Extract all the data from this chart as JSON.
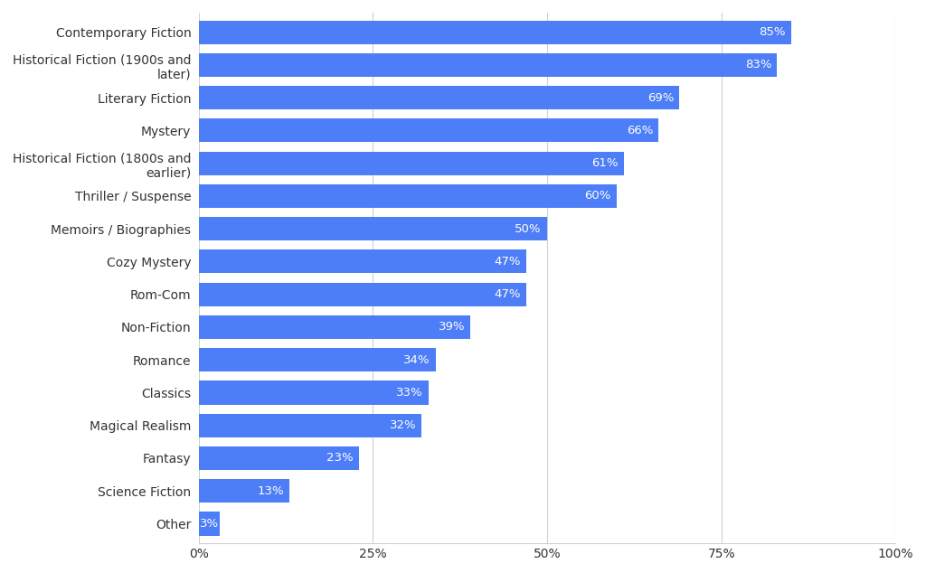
{
  "categories": [
    "Contemporary Fiction",
    "Historical Fiction (1900s and\nlater)",
    "Literary Fiction",
    "Mystery",
    "Historical Fiction (1800s and\nearlier)",
    "Thriller / Suspense",
    "Memoirs / Biographies",
    "Cozy Mystery",
    "Rom-Com",
    "Non-Fiction",
    "Romance",
    "Classics",
    "Magical Realism",
    "Fantasy",
    "Science Fiction",
    "Other"
  ],
  "values": [
    85,
    83,
    69,
    66,
    61,
    60,
    50,
    47,
    47,
    39,
    34,
    33,
    32,
    23,
    13,
    3
  ],
  "bar_color": "#4d7ef7",
  "label_color": "#ffffff",
  "background_color": "#ffffff",
  "xlim": [
    0,
    100
  ],
  "bar_height": 0.72,
  "label_fontsize": 9.5,
  "tick_fontsize": 10,
  "grid_color": "#d0d0d0",
  "spine_color": "#d0d0d0",
  "label_inside_threshold": 8
}
